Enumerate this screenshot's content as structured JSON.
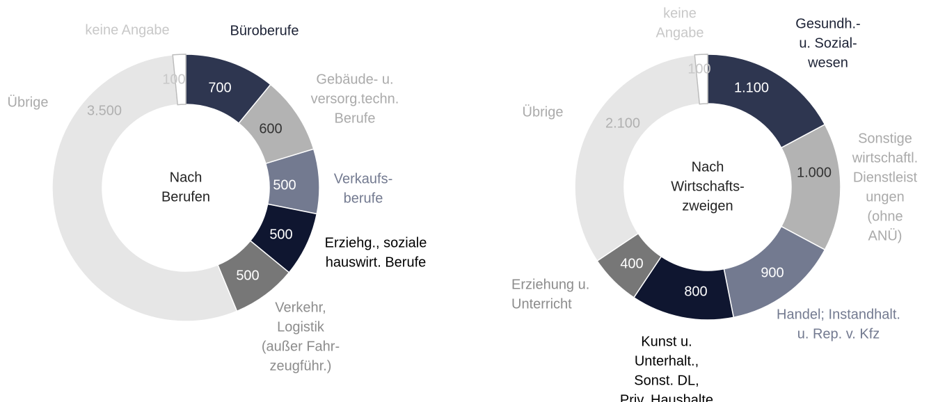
{
  "chart_data": [
    {
      "type": "pie",
      "title": [
        "Nach",
        "Berufen"
      ],
      "categories": [
        [
          "Büroberufe"
        ],
        [
          "Gebäude- u.",
          "versorg.techn.",
          "Berufe"
        ],
        [
          "Verkaufs-",
          "berufe"
        ],
        [
          "Erziehg., soziale",
          "hauswirt. Berufe"
        ],
        [
          "Verkehr,",
          "Logistik",
          "(außer Fahr-",
          "zeugführ.)"
        ],
        [
          "Übrige"
        ],
        [
          "keine Angabe"
        ]
      ],
      "values": [
        700,
        600,
        500,
        500,
        500,
        3500,
        100
      ],
      "value_labels": [
        "700",
        "600",
        "500",
        "500",
        "500",
        "3.500",
        "100"
      ],
      "colors": [
        "#2e3650",
        "#b3b3b3",
        "#737a90",
        "#0f1630",
        "#777777",
        "#e6e6e6",
        "#ffffff"
      ],
      "label_colors": [
        "#1c2235",
        "#aaaaaa",
        "#737a90",
        "#000000",
        "#8c8c8c",
        "#aaaaaa",
        "#c8c8c8"
      ],
      "value_label_colors": [
        "#ffffff",
        "#333333",
        "#ffffff",
        "#ffffff",
        "#ffffff",
        "#b0b0b0",
        "#c8c8c8"
      ]
    },
    {
      "type": "pie",
      "title": [
        "Nach",
        "Wirtschafts-",
        "zweigen"
      ],
      "categories": [
        [
          "Gesundh.-",
          "u. Sozial-",
          "wesen"
        ],
        [
          "Sonstige",
          "wirtschaftl.",
          "Dienstleist",
          "ungen",
          "(ohne",
          "ANÜ)"
        ],
        [
          "Handel; Instandhalt.",
          "u. Rep. v. Kfz"
        ],
        [
          "Kunst u.",
          "Unterhalt.,",
          "Sonst. DL,",
          "Priv. Haushalte"
        ],
        [
          "Erziehung u.",
          "Unterricht"
        ],
        [
          "Übrige"
        ],
        [
          "keine",
          "Angabe"
        ]
      ],
      "values": [
        1100,
        1000,
        900,
        800,
        400,
        2100,
        100
      ],
      "value_labels": [
        "1.100",
        "1.000",
        "900",
        "800",
        "400",
        "2.100",
        "100"
      ],
      "colors": [
        "#2e3650",
        "#b3b3b3",
        "#737a90",
        "#0f1630",
        "#777777",
        "#e6e6e6",
        "#ffffff"
      ],
      "label_colors": [
        "#1c2235",
        "#aaaaaa",
        "#737a90",
        "#000000",
        "#8c8c8c",
        "#aaaaaa",
        "#c8c8c8"
      ],
      "value_label_colors": [
        "#ffffff",
        "#333333",
        "#ffffff",
        "#ffffff",
        "#ffffff",
        "#b0b0b0",
        "#c8c8c8"
      ]
    }
  ]
}
